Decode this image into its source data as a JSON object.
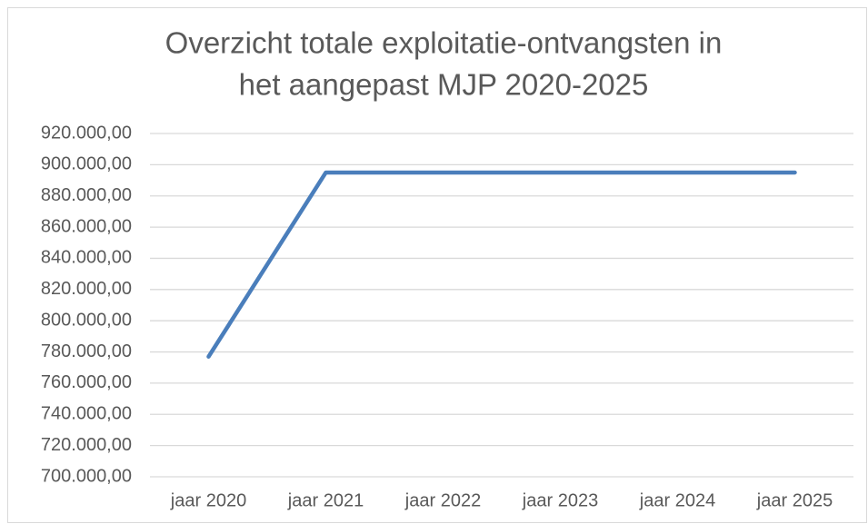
{
  "chart_data": {
    "type": "line",
    "title": [
      "Overzicht totale exploitatie-ontvangsten in",
      "het aangepast MJP 2020-2025"
    ],
    "categories": [
      "jaar 2020",
      "jaar 2021",
      "jaar 2022",
      "jaar 2023",
      "jaar 2024",
      "jaar 2025"
    ],
    "series": [
      {
        "color": "#4a7ebb",
        "values": [
          777000,
          895000,
          895000,
          895000,
          895000,
          895000
        ]
      }
    ],
    "ylim": [
      700000,
      920000
    ],
    "yticks": [
      {
        "value": 700000,
        "label": "700.000,00"
      },
      {
        "value": 720000,
        "label": "720.000,00"
      },
      {
        "value": 740000,
        "label": "740.000,00"
      },
      {
        "value": 760000,
        "label": "760.000,00"
      },
      {
        "value": 780000,
        "label": "780.000,00"
      },
      {
        "value": 800000,
        "label": "800.000,00"
      },
      {
        "value": 820000,
        "label": "820.000,00"
      },
      {
        "value": 840000,
        "label": "840.000,00"
      },
      {
        "value": 860000,
        "label": "860.000,00"
      },
      {
        "value": 880000,
        "label": "880.000,00"
      },
      {
        "value": 900000,
        "label": "900.000,00"
      },
      {
        "value": 920000,
        "label": "920.000,00"
      }
    ],
    "grid": true
  }
}
